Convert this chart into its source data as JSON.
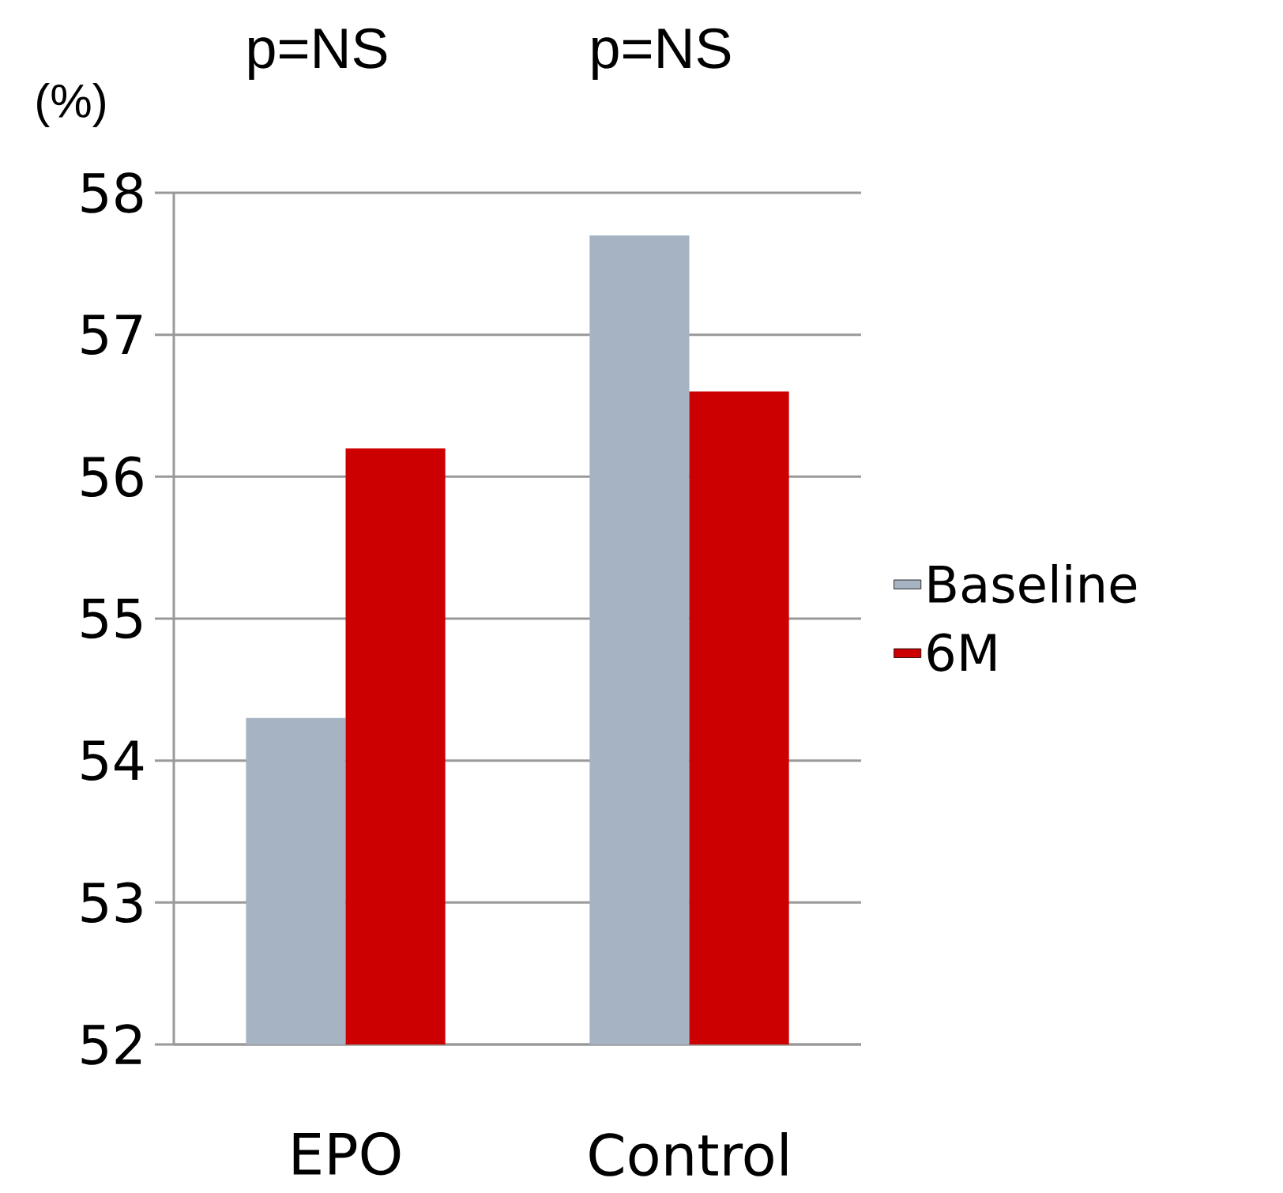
{
  "chart_data": {
    "type": "bar",
    "ylabel": "(%)",
    "categories": [
      "EPO",
      "Control"
    ],
    "series": [
      {
        "name": "Baseline",
        "color": "#a5b3c3",
        "values": [
          54.3,
          57.7
        ]
      },
      {
        "name": "6M",
        "color": "#cc0000",
        "values": [
          56.2,
          56.6
        ]
      }
    ],
    "ylim": [
      52,
      58
    ],
    "yticks": [
      52,
      53,
      54,
      55,
      56,
      57,
      58
    ],
    "grid": "y",
    "legend": "right",
    "annotations": [
      "p=NS",
      "p=NS"
    ]
  }
}
